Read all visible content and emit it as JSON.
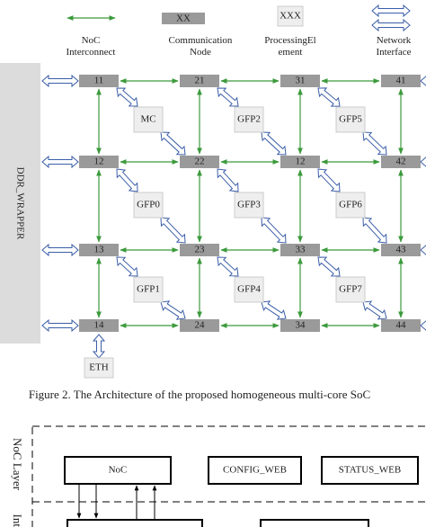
{
  "legend": [
    {
      "symbol": "",
      "label": "NoC\nInterconnect"
    },
    {
      "symbol": "XX",
      "label": "Communication\nNode"
    },
    {
      "symbol": "XXX",
      "label": "ProcessingEl\nement"
    },
    {
      "symbol": "",
      "label": "Network\nInterface"
    }
  ],
  "ddr": "DDR_WRAPPER",
  "nodes": [
    {
      "label": "11"
    },
    {
      "label": "21"
    },
    {
      "label": "31"
    },
    {
      "label": "41"
    },
    {
      "label": "12"
    },
    {
      "label": "22"
    },
    {
      "label": "12"
    },
    {
      "label": "42"
    },
    {
      "label": "13"
    },
    {
      "label": "23"
    },
    {
      "label": "33"
    },
    {
      "label": "43"
    },
    {
      "label": "14"
    },
    {
      "label": "24"
    },
    {
      "label": "34"
    },
    {
      "label": "44"
    }
  ],
  "pes": [
    {
      "label": "MC"
    },
    {
      "label": "GFP2"
    },
    {
      "label": "GFP5"
    },
    {
      "label": "GFP0"
    },
    {
      "label": "GFP3"
    },
    {
      "label": "GFP6"
    },
    {
      "label": "GFP1"
    },
    {
      "label": "GFP4"
    },
    {
      "label": "GFP7"
    }
  ],
  "eth": "ETH",
  "caption": "Figure 2.   The Architecture of the proposed homogeneous multi-core SoC",
  "lower": {
    "noc_layer": "NoC Layer",
    "interface_layer": "Int",
    "boxes": [
      {
        "label": "NoC"
      },
      {
        "label": "CONFIG_WEB"
      },
      {
        "label": "STATUS_WEB"
      }
    ]
  }
}
